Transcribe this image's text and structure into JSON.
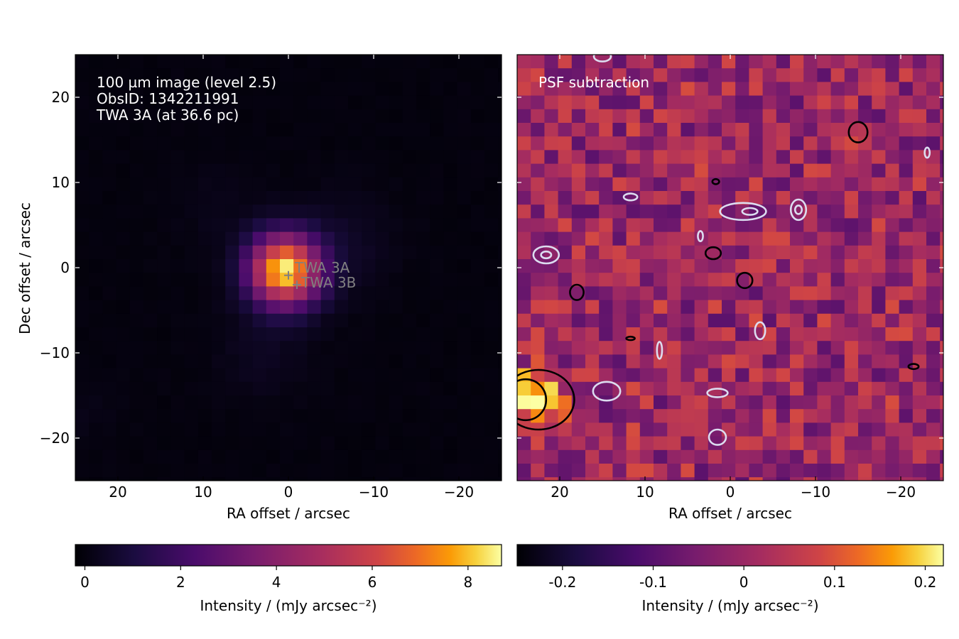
{
  "chart_data": [
    {
      "type": "heatmap",
      "panel": "left",
      "annotation_lines": [
        "100 µm image (level 2.5)",
        "ObsID: 1342211991",
        "TWA 3A (at 36.6 pc)"
      ],
      "xlabel": "RA offset / arcsec",
      "ylabel": "Dec offset / arcsec",
      "xlim": [
        25,
        -25
      ],
      "ylim": [
        -25,
        25
      ],
      "xticks": [
        20,
        10,
        0,
        -10,
        -20
      ],
      "xtick_labels": [
        "20",
        "10",
        "0",
        "−10",
        "−20"
      ],
      "yticks": [
        20,
        10,
        0,
        -10,
        -20
      ],
      "ytick_labels": [
        "20",
        "10",
        "0",
        "−10",
        "−20"
      ],
      "pixel_scale_arcsec": 1.6,
      "colormap": "inferno",
      "vmin": -0.2,
      "vmax": 8.7,
      "source": {
        "ra": 0.4,
        "dec": -0.3,
        "peak": 8.5,
        "sigma_arcsec": 2.9
      },
      "background_features": [
        {
          "ra": -7,
          "dec": 3,
          "amp": 0.45,
          "sigma": 4
        },
        {
          "ra": 3,
          "dec": -10,
          "amp": 0.35,
          "sigma": 4
        },
        {
          "ra": 8,
          "dec": 7,
          "amp": 0.2,
          "sigma": 4
        },
        {
          "ra": 24,
          "dec": -17,
          "amp": 0.15,
          "sigma": 3
        }
      ],
      "markers": [
        {
          "label": "TWA 3A",
          "ra": 0.0,
          "dec": -0.9
        },
        {
          "label": "TWA 3B",
          "ra": -1.0,
          "dec": -2.0
        }
      ],
      "colorbar": {
        "label": "Intensity / (mJy arcsec⁻²)",
        "min": -0.2,
        "max": 8.7,
        "ticks": [
          0,
          2,
          4,
          6,
          8
        ],
        "tick_labels": [
          "0",
          "2",
          "4",
          "6",
          "8"
        ]
      }
    },
    {
      "type": "heatmap",
      "panel": "right",
      "annotation": "PSF subtraction",
      "xlabel": "RA offset / arcsec",
      "xlim": [
        25,
        -25
      ],
      "ylim": [
        -25,
        25
      ],
      "xticks": [
        20,
        10,
        0,
        -10,
        -20
      ],
      "xtick_labels": [
        "20",
        "10",
        "0",
        "−10",
        "−20"
      ],
      "yticks": [
        20,
        10,
        0,
        -10,
        -20
      ],
      "pixel_scale_arcsec": 1.6,
      "colormap": "inferno",
      "vmin": -0.25,
      "vmax": 0.22,
      "residual_mean": 0.0,
      "residual_scatter": 0.055,
      "bright_blob": {
        "ra": 23.5,
        "dec": -15.5,
        "peak": 0.21
      },
      "contours_positive": [
        {
          "ra": 22.5,
          "dec": -15.5,
          "rx": 4.2,
          "ry": 3.5
        },
        {
          "ra": 24.0,
          "dec": -15.5,
          "rx": 2.4,
          "ry": 2.4
        },
        {
          "ra": 18.0,
          "dec": -2.9,
          "rx": 0.8,
          "ry": 0.9
        },
        {
          "ra": 2.0,
          "dec": 1.7,
          "rx": 0.9,
          "ry": 0.7
        },
        {
          "ra": -1.7,
          "dec": -1.5,
          "rx": 0.9,
          "ry": 0.9
        },
        {
          "ra": -15.0,
          "dec": 15.9,
          "rx": 1.1,
          "ry": 1.2
        },
        {
          "ra": 1.7,
          "dec": 10.1,
          "rx": 0.4,
          "ry": 0.3
        },
        {
          "ra": -21.5,
          "dec": -11.6,
          "rx": 0.6,
          "ry": 0.3
        },
        {
          "ra": 11.7,
          "dec": -8.3,
          "rx": 0.5,
          "ry": 0.2
        }
      ],
      "contours_negative": [
        {
          "ra": 21.6,
          "dec": 1.5,
          "rx": 1.5,
          "ry": 1.0
        },
        {
          "ra": 21.6,
          "dec": 1.5,
          "rx": 0.6,
          "ry": 0.4
        },
        {
          "ra": -1.5,
          "dec": 6.6,
          "rx": 2.7,
          "ry": 1.0
        },
        {
          "ra": -2.3,
          "dec": 6.6,
          "rx": 0.9,
          "ry": 0.4
        },
        {
          "ra": -8.0,
          "dec": 6.8,
          "rx": 0.9,
          "ry": 1.2
        },
        {
          "ra": -8.0,
          "dec": 6.8,
          "rx": 0.4,
          "ry": 0.5
        },
        {
          "ra": 14.5,
          "dec": -14.5,
          "rx": 1.6,
          "ry": 1.1
        },
        {
          "ra": 1.5,
          "dec": -14.7,
          "rx": 1.2,
          "ry": 0.5
        },
        {
          "ra": 1.5,
          "dec": -19.9,
          "rx": 1.0,
          "ry": 0.9
        },
        {
          "ra": 11.7,
          "dec": 8.3,
          "rx": 0.8,
          "ry": 0.4
        },
        {
          "ra": -3.5,
          "dec": -7.4,
          "rx": 0.6,
          "ry": 1.0
        },
        {
          "ra": 8.3,
          "dec": -9.7,
          "rx": 0.3,
          "ry": 1.0
        },
        {
          "ra": 15.0,
          "dec": 24.8,
          "rx": 1.0,
          "ry": 0.6
        },
        {
          "ra": 3.5,
          "dec": 3.7,
          "rx": 0.3,
          "ry": 0.6
        },
        {
          "ra": -23.1,
          "dec": 13.5,
          "rx": 0.3,
          "ry": 0.6
        }
      ],
      "colorbar": {
        "label": "Intensity / (mJy arcsec⁻²)",
        "min": -0.25,
        "max": 0.22,
        "ticks": [
          -0.2,
          -0.1,
          0,
          0.1,
          0.2
        ],
        "tick_labels": [
          "-0.2",
          "-0.1",
          "0",
          "0.1",
          "0.2"
        ]
      }
    }
  ]
}
